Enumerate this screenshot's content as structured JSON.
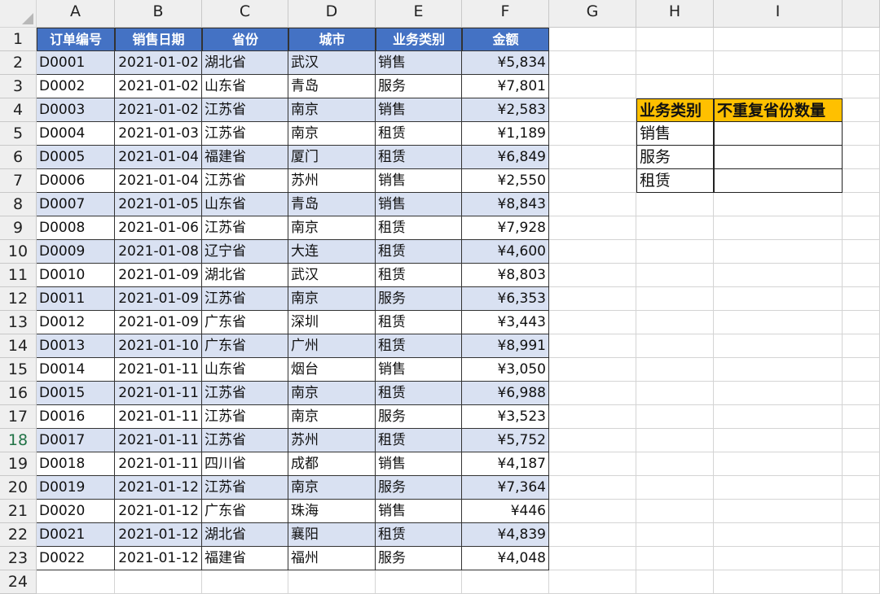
{
  "columns": [
    "A",
    "B",
    "C",
    "D",
    "E",
    "F",
    "G",
    "H",
    "I"
  ],
  "rows": [
    "1",
    "2",
    "3",
    "4",
    "5",
    "6",
    "7",
    "8",
    "9",
    "10",
    "11",
    "12",
    "13",
    "14",
    "15",
    "16",
    "17",
    "18",
    "19",
    "20",
    "21",
    "22",
    "23",
    "24"
  ],
  "selected_row": "18",
  "colors": {
    "header_fill": "#4472C4",
    "band_fill": "#D9E1F2",
    "summary_header_fill": "#FFC000"
  },
  "table": {
    "headers": [
      "订单编号",
      "销售日期",
      "省份",
      "城市",
      "业务类别",
      "金额"
    ],
    "rows": [
      [
        "D0001",
        "2021-01-02",
        "湖北省",
        "武汉",
        "销售",
        "¥5,834"
      ],
      [
        "D0002",
        "2021-01-02",
        "山东省",
        "青岛",
        "服务",
        "¥7,801"
      ],
      [
        "D0003",
        "2021-01-02",
        "江苏省",
        "南京",
        "销售",
        "¥2,583"
      ],
      [
        "D0004",
        "2021-01-03",
        "江苏省",
        "南京",
        "租赁",
        "¥1,189"
      ],
      [
        "D0005",
        "2021-01-04",
        "福建省",
        "厦门",
        "租赁",
        "¥6,849"
      ],
      [
        "D0006",
        "2021-01-04",
        "江苏省",
        "苏州",
        "销售",
        "¥2,550"
      ],
      [
        "D0007",
        "2021-01-05",
        "山东省",
        "青岛",
        "销售",
        "¥8,843"
      ],
      [
        "D0008",
        "2021-01-06",
        "江苏省",
        "南京",
        "租赁",
        "¥7,928"
      ],
      [
        "D0009",
        "2021-01-08",
        "辽宁省",
        "大连",
        "租赁",
        "¥4,600"
      ],
      [
        "D0010",
        "2021-01-09",
        "湖北省",
        "武汉",
        "租赁",
        "¥8,803"
      ],
      [
        "D0011",
        "2021-01-09",
        "江苏省",
        "南京",
        "服务",
        "¥6,353"
      ],
      [
        "D0012",
        "2021-01-09",
        "广东省",
        "深圳",
        "租赁",
        "¥3,443"
      ],
      [
        "D0013",
        "2021-01-10",
        "广东省",
        "广州",
        "租赁",
        "¥8,991"
      ],
      [
        "D0014",
        "2021-01-11",
        "山东省",
        "烟台",
        "销售",
        "¥3,050"
      ],
      [
        "D0015",
        "2021-01-11",
        "江苏省",
        "南京",
        "租赁",
        "¥6,988"
      ],
      [
        "D0016",
        "2021-01-11",
        "江苏省",
        "南京",
        "服务",
        "¥3,523"
      ],
      [
        "D0017",
        "2021-01-11",
        "江苏省",
        "苏州",
        "租赁",
        "¥5,752"
      ],
      [
        "D0018",
        "2021-01-11",
        "四川省",
        "成都",
        "销售",
        "¥4,187"
      ],
      [
        "D0019",
        "2021-01-12",
        "江苏省",
        "南京",
        "服务",
        "¥7,364"
      ],
      [
        "D0020",
        "2021-01-12",
        "广东省",
        "珠海",
        "销售",
        "¥446"
      ],
      [
        "D0021",
        "2021-01-12",
        "湖北省",
        "襄阳",
        "租赁",
        "¥4,839"
      ],
      [
        "D0022",
        "2021-01-12",
        "福建省",
        "福州",
        "服务",
        "¥4,048"
      ]
    ]
  },
  "summary": {
    "headers": [
      "业务类别",
      "不重复省份数量"
    ],
    "rows": [
      [
        "销售",
        ""
      ],
      [
        "服务",
        ""
      ],
      [
        "租赁",
        ""
      ]
    ]
  }
}
